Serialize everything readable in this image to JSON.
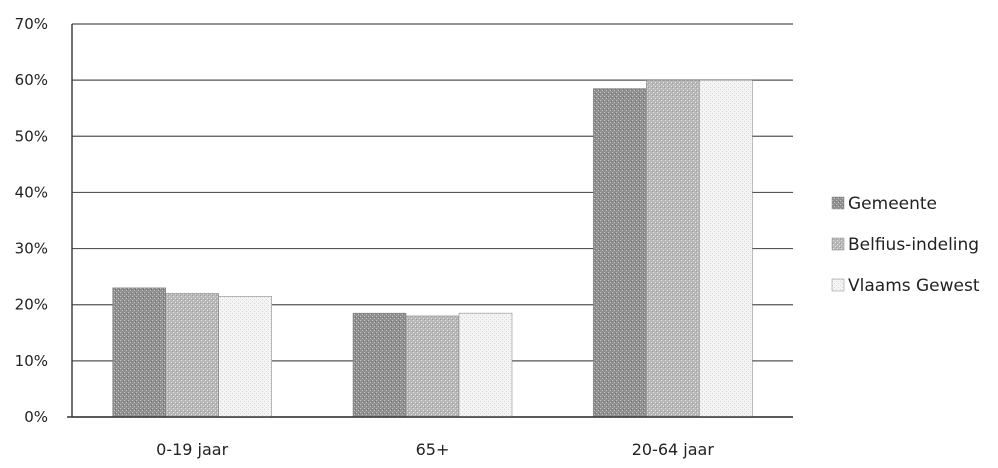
{
  "chart_data": {
    "type": "bar",
    "categories": [
      "0-19 jaar",
      "65+",
      "20-64 jaar"
    ],
    "series": [
      {
        "name": "Gemeente",
        "values": [
          23,
          18.5,
          58.5
        ],
        "color": "#9a9a9a"
      },
      {
        "name": "Belfius-indeling",
        "values": [
          22,
          18,
          60
        ],
        "color": "#bdbdbd"
      },
      {
        "name": "Vlaams Gewest",
        "values": [
          21.5,
          18.5,
          60
        ],
        "color": "#ececec"
      }
    ],
    "y_ticks": [
      "0%",
      "10%",
      "20%",
      "30%",
      "40%",
      "50%",
      "60%",
      "70%"
    ],
    "ylim": [
      0,
      70
    ],
    "grid": true,
    "legend_position": "right"
  }
}
